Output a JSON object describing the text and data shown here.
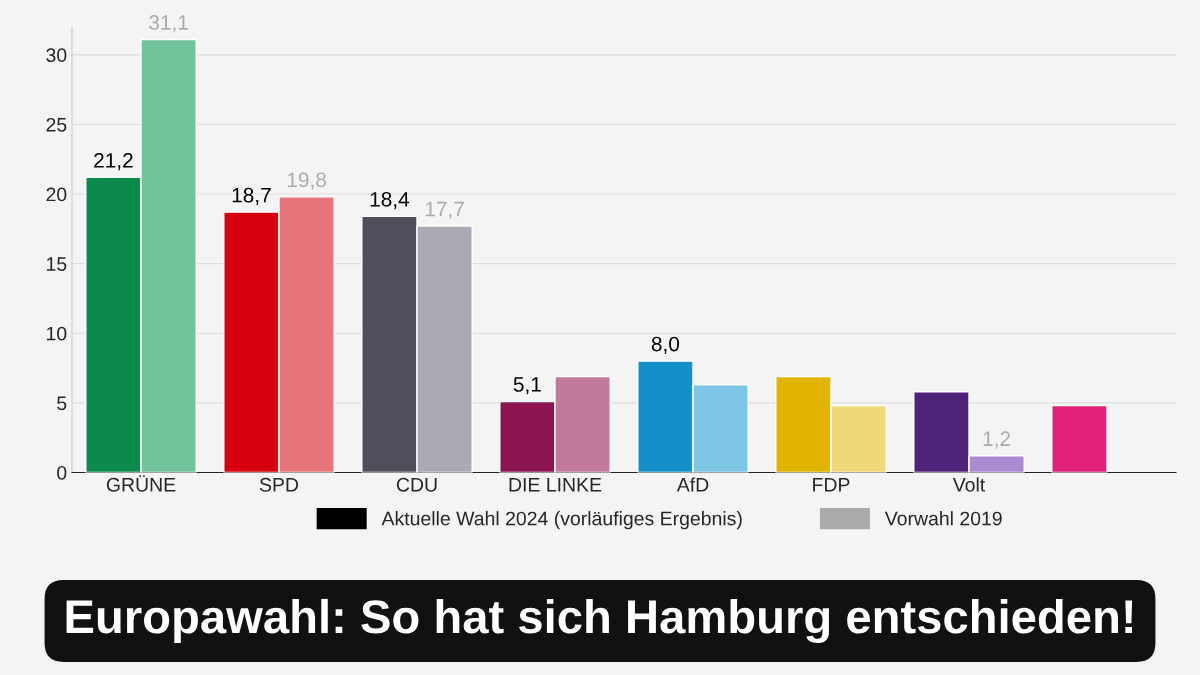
{
  "chart_data": {
    "type": "bar",
    "categories": [
      "GRÜNE",
      "SPD",
      "CDU",
      "DIE LINKE",
      "AfD",
      "FDP",
      "Volt",
      null
    ],
    "series": [
      {
        "name": "Aktuelle Wahl 2024 (vorläufiges Ergebnis)",
        "color": "#000000",
        "colors": [
          "#0b8a4b",
          "#d6000f",
          "#4f4f5c",
          "#8c1450",
          "#1490c8",
          "#e0b400",
          "#50237a",
          "#e0207a"
        ],
        "values": [
          21.2,
          18.7,
          18.4,
          5.1,
          8.0,
          6.9,
          5.8,
          4.8
        ],
        "value_labels": [
          "21,2",
          "18,7",
          "18,4",
          "5,1",
          "8,0",
          null,
          null,
          null
        ]
      },
      {
        "name": "Vorwahl 2019",
        "color": "#aaaaaa",
        "colors": [
          "#72c29b",
          "#e8747b",
          "#a9aab4",
          "#c27a9c",
          "#7fc6e6",
          "#f0d77a",
          "#a98bd2",
          "#f08cbc"
        ],
        "values": [
          31.1,
          19.8,
          17.7,
          6.9,
          6.3,
          4.8,
          1.2,
          null
        ],
        "value_labels": [
          "31,1",
          "19,8",
          "17,7",
          null,
          null,
          null,
          "1,2",
          null
        ]
      }
    ],
    "ylim": [
      0,
      32
    ],
    "yticks": [
      0,
      5,
      10,
      15,
      20,
      25,
      30
    ],
    "grid": "y",
    "legend": "bottom",
    "annotations": [
      "Europawahl: So hat sich Hamburg entschieden!"
    ]
  }
}
